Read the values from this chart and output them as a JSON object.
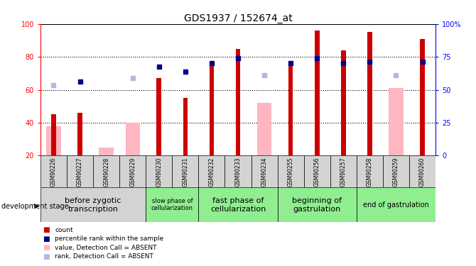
{
  "title": "GDS1937 / 152674_at",
  "samples": [
    "GSM90226",
    "GSM90227",
    "GSM90228",
    "GSM90229",
    "GSM90230",
    "GSM90231",
    "GSM90232",
    "GSM90233",
    "GSM90234",
    "GSM90255",
    "GSM90256",
    "GSM90257",
    "GSM90258",
    "GSM90259",
    "GSM90260"
  ],
  "red_bars": [
    45,
    46,
    null,
    null,
    67,
    55,
    75,
    85,
    null,
    75,
    96,
    84,
    95,
    null,
    91
  ],
  "pink_bars": [
    38,
    null,
    25,
    40,
    null,
    null,
    null,
    null,
    52,
    null,
    null,
    null,
    null,
    61,
    null
  ],
  "blue_squares": [
    null,
    65,
    null,
    null,
    74,
    71,
    76,
    79,
    null,
    76,
    79,
    76,
    77,
    null,
    77
  ],
  "lightblue_squares": [
    63,
    null,
    null,
    67,
    null,
    null,
    null,
    null,
    69,
    null,
    null,
    null,
    null,
    69,
    null
  ],
  "ylim_left": [
    20,
    100
  ],
  "left_ticks": [
    20,
    40,
    60,
    80,
    100
  ],
  "right_ticks": [
    0,
    25,
    50,
    75,
    100
  ],
  "right_tick_labels": [
    "0",
    "25",
    "50",
    "75",
    "100%"
  ],
  "dotted_lines": [
    40,
    60,
    80
  ],
  "stage_groups": [
    {
      "label": "before zygotic\ntranscription",
      "samples_range": [
        0,
        3
      ],
      "color": "#d3d3d3",
      "fontsize": 8
    },
    {
      "label": "slow phase of\ncellularization",
      "samples_range": [
        4,
        5
      ],
      "color": "#90ee90",
      "fontsize": 6
    },
    {
      "label": "fast phase of\ncellularization",
      "samples_range": [
        6,
        8
      ],
      "color": "#90ee90",
      "fontsize": 8
    },
    {
      "label": "beginning of\ngastrulation",
      "samples_range": [
        9,
        11
      ],
      "color": "#90ee90",
      "fontsize": 8
    },
    {
      "label": "end of gastrulation",
      "samples_range": [
        12,
        14
      ],
      "color": "#90ee90",
      "fontsize": 7
    }
  ],
  "red_color": "#cc0000",
  "pink_color": "#ffb6c1",
  "blue_color": "#00008b",
  "lightblue_color": "#b0b8e0",
  "legend_items": [
    {
      "color": "#cc0000",
      "label": "count"
    },
    {
      "color": "#00008b",
      "label": "percentile rank within the sample"
    },
    {
      "color": "#ffb6c1",
      "label": "value, Detection Call = ABSENT"
    },
    {
      "color": "#b0b8e0",
      "label": "rank, Detection Call = ABSENT"
    }
  ]
}
